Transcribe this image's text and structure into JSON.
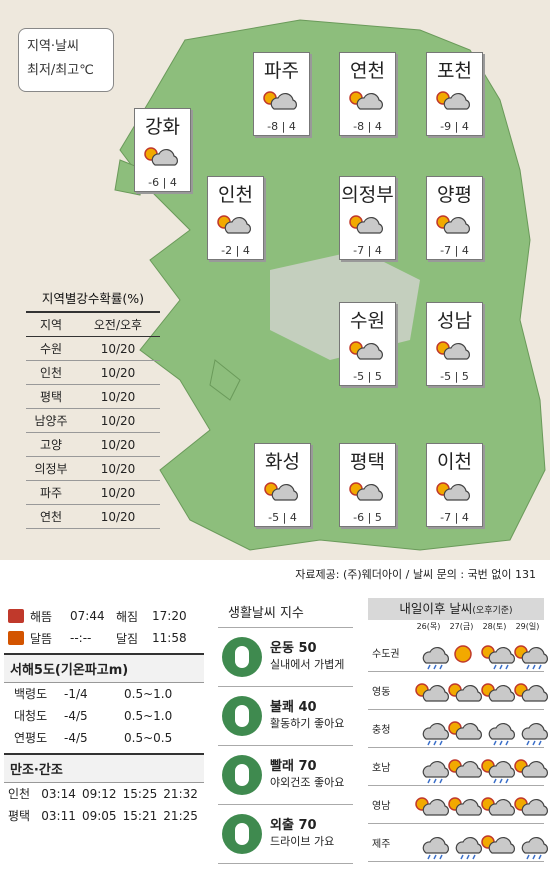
{
  "map": {
    "legend_line1": "지역·날씨",
    "legend_line2": "최저/최고℃",
    "colors": {
      "land": "#8dbe7c",
      "urban": "#c4cfbe",
      "sea": "#eee8dd"
    },
    "cities": [
      {
        "name": "파주",
        "low": "-8",
        "high": "4",
        "icon": "sun-cloud-icon"
      },
      {
        "name": "연천",
        "low": "-8",
        "high": "4",
        "icon": "sun-cloud-icon"
      },
      {
        "name": "포천",
        "low": "-9",
        "high": "4",
        "icon": "sun-cloud-icon"
      },
      {
        "name": "강화",
        "low": "-6",
        "high": "4",
        "icon": "sun-cloud-icon"
      },
      {
        "name": "인천",
        "low": "-2",
        "high": "4",
        "icon": "sun-cloud-icon"
      },
      {
        "name": "의정부",
        "low": "-7",
        "high": "4",
        "icon": "sun-cloud-icon"
      },
      {
        "name": "양평",
        "low": "-7",
        "high": "4",
        "icon": "sun-cloud-icon"
      },
      {
        "name": "수원",
        "low": "-5",
        "high": "5",
        "icon": "sun-cloud-icon"
      },
      {
        "name": "성남",
        "low": "-5",
        "high": "5",
        "icon": "sun-cloud-icon"
      },
      {
        "name": "화성",
        "low": "-5",
        "high": "4",
        "icon": "sun-cloud-icon"
      },
      {
        "name": "평택",
        "low": "-6",
        "high": "5",
        "icon": "sun-cloud-icon"
      },
      {
        "name": "이천",
        "low": "-7",
        "high": "4",
        "icon": "sun-cloud-icon"
      }
    ]
  },
  "rain": {
    "title": "지역별강수확률(%)",
    "header": [
      "지역",
      "오전/오후"
    ],
    "rows": [
      [
        "수원",
        "10/20"
      ],
      [
        "인천",
        "10/20"
      ],
      [
        "평택",
        "10/20"
      ],
      [
        "남양주",
        "10/20"
      ],
      [
        "고양",
        "10/20"
      ],
      [
        "의정부",
        "10/20"
      ],
      [
        "파주",
        "10/20"
      ],
      [
        "연천",
        "10/20"
      ]
    ]
  },
  "source": "자료제공: (주)웨더아이 / 날씨 문의 : 국번 없이 131",
  "sun": {
    "sunrise_label": "해뜸",
    "sunrise": "07:44",
    "sunset_label": "해짐",
    "sunset": "17:20",
    "moonrise_label": "달뜸",
    "moonrise": "--:--",
    "moonset_label": "달짐",
    "moonset": "11:58"
  },
  "waves": {
    "title": "서해5도(기온파고m)",
    "rows": [
      [
        "백령도",
        "-1/4",
        "0.5~1.0"
      ],
      [
        "대청도",
        "-4/5",
        "0.5~1.0"
      ],
      [
        "연평도",
        "-4/5",
        "0.5~0.5"
      ]
    ]
  },
  "tides": {
    "title": "만조·간조",
    "rows": [
      [
        "인천",
        "03:14",
        "09:12",
        "15:25",
        "21:32"
      ],
      [
        "평택",
        "03:11",
        "09:05",
        "15:21",
        "21:25"
      ]
    ]
  },
  "life": {
    "title": "생활날씨 지수",
    "items": [
      {
        "name": "운동 50",
        "desc": "실내에서 가볍게",
        "icon": "exercise-icon"
      },
      {
        "name": "불쾌 40",
        "desc": "활동하기 좋아요",
        "icon": "discomfort-icon"
      },
      {
        "name": "빨래 70",
        "desc": "야외건조 좋아요",
        "icon": "laundry-icon"
      },
      {
        "name": "외출 70",
        "desc": "드라이브 가요",
        "icon": "outing-icon"
      }
    ]
  },
  "week": {
    "title": "내일이후 날씨",
    "title_note": "(오후기준)",
    "dates": [
      "26(목)",
      "27(금)",
      "28(토)",
      "29(일)"
    ],
    "regions": [
      {
        "name": "수도권",
        "icons": [
          "cloud-rain-icon",
          "sun-icon",
          "sun-cloud-rain-icon",
          "sun-cloud-rain-icon"
        ]
      },
      {
        "name": "영동",
        "icons": [
          "sun-cloud-icon",
          "sun-cloud-icon",
          "sun-cloud-icon",
          "sun-cloud-icon"
        ]
      },
      {
        "name": "충청",
        "icons": [
          "cloud-rain-icon",
          "sun-cloud-icon",
          "cloud-rain-icon",
          "cloud-rain-icon"
        ]
      },
      {
        "name": "호남",
        "icons": [
          "cloud-rain-icon",
          "sun-cloud-icon",
          "sun-cloud-rain-icon",
          "sun-cloud-icon"
        ]
      },
      {
        "name": "영남",
        "icons": [
          "sun-cloud-icon",
          "sun-cloud-icon",
          "sun-cloud-icon",
          "sun-cloud-icon"
        ]
      },
      {
        "name": "제주",
        "icons": [
          "cloud-rain-icon",
          "cloud-rain-icon",
          "sun-cloud-icon",
          "cloud-rain-icon"
        ]
      }
    ]
  }
}
